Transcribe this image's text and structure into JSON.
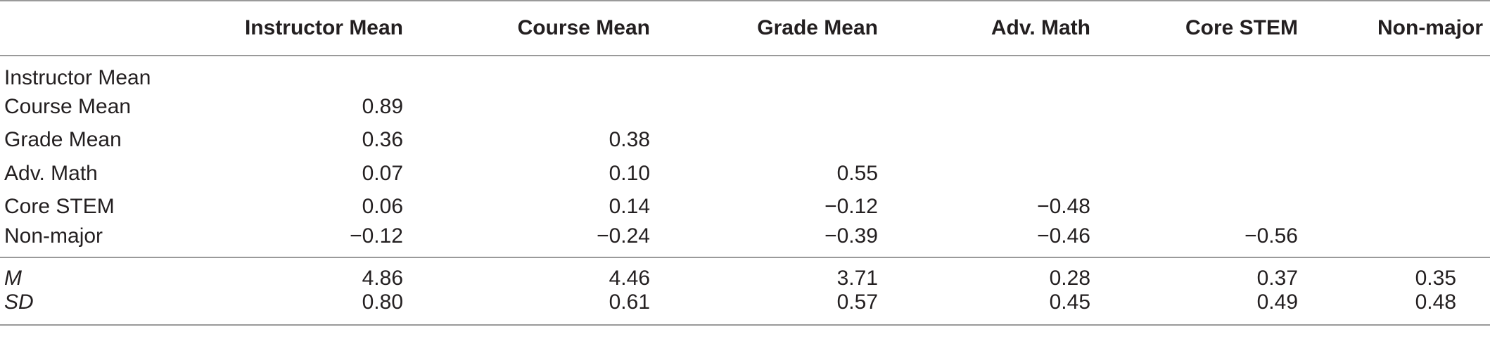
{
  "table": {
    "headers": [
      "",
      "Instructor Mean",
      "Course Mean",
      "Grade Mean",
      "Adv. Math",
      "Core STEM",
      "Non-major"
    ],
    "rows": [
      {
        "label": "Instructor Mean",
        "values": [
          "",
          "",
          "",
          "",
          "",
          ""
        ]
      },
      {
        "label": "Course Mean",
        "values": [
          "0.89",
          "",
          "",
          "",
          "",
          ""
        ]
      },
      {
        "label": "Grade Mean",
        "values": [
          "0.36",
          "0.38",
          "",
          "",
          "",
          ""
        ]
      },
      {
        "label": "Adv. Math",
        "values": [
          "0.07",
          "0.10",
          "0.55",
          "",
          "",
          ""
        ]
      },
      {
        "label": "Core STEM",
        "values": [
          "0.06",
          "0.14",
          "−0.12",
          "−0.48",
          "",
          ""
        ]
      },
      {
        "label": "Non-major",
        "values": [
          "−0.12",
          "−0.24",
          "−0.39",
          "−0.46",
          "−0.56",
          ""
        ]
      }
    ],
    "summary": [
      {
        "label": "M",
        "values": [
          "4.86",
          "4.46",
          "3.71",
          "0.28",
          "0.37",
          "0.35"
        ]
      },
      {
        "label": "SD",
        "values": [
          "0.80",
          "0.61",
          "0.57",
          "0.45",
          "0.49",
          "0.48"
        ]
      }
    ]
  }
}
